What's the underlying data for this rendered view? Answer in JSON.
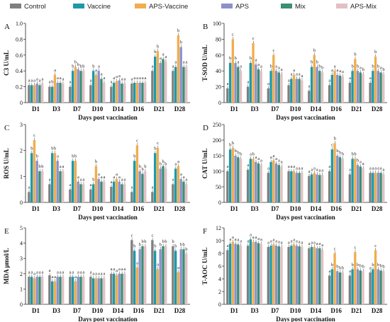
{
  "legend": [
    {
      "name": "Control",
      "color": "#7f7f7f"
    },
    {
      "name": "Vaccine",
      "color": "#1b9aa8"
    },
    {
      "name": "APS-Vaccine",
      "color": "#f0ad4e"
    },
    {
      "name": "APS",
      "color": "#8d90c9"
    },
    {
      "name": "Mix",
      "color": "#3a8f75"
    },
    {
      "name": "APS-Mix",
      "color": "#e3bfc3"
    }
  ],
  "chart_data": [
    {
      "panel": "A",
      "type": "bar",
      "ylabel": "C3  U/mL",
      "xlabel": "Days post vaccination",
      "categories": [
        "D1",
        "D3",
        "D7",
        "D10",
        "D14",
        "D16",
        "D21",
        "D28"
      ],
      "ylim": [
        0,
        1.0
      ],
      "yticks": [
        0,
        0.2,
        0.4,
        0.6,
        0.8,
        1.0
      ],
      "ytick_labels": [
        "0",
        "0.2",
        "0.4",
        "0.6",
        "0.8",
        "1.0"
      ],
      "series": [
        {
          "name": "Control",
          "values": [
            0.22,
            0.2,
            0.2,
            0.22,
            0.2,
            0.24,
            0.4,
            0.4
          ]
        },
        {
          "name": "Vaccine",
          "values": [
            0.22,
            0.2,
            0.4,
            0.4,
            0.25,
            0.25,
            0.58,
            0.45
          ]
        },
        {
          "name": "APS-Vaccine",
          "values": [
            0.22,
            0.35,
            0.45,
            0.35,
            0.27,
            0.25,
            0.65,
            0.85
          ]
        },
        {
          "name": "APS",
          "values": [
            0.24,
            0.25,
            0.42,
            0.4,
            0.28,
            0.25,
            0.5,
            0.7
          ]
        },
        {
          "name": "Mix",
          "values": [
            0.22,
            0.25,
            0.4,
            0.3,
            0.24,
            0.25,
            0.55,
            0.45
          ]
        },
        {
          "name": "APS-Mix",
          "values": [
            0.24,
            0.24,
            0.4,
            0.25,
            0.24,
            0.25,
            0.52,
            0.45
          ]
        }
      ],
      "letters": [
        [
          "a",
          "a",
          "a",
          "a",
          "a",
          "a"
        ],
        [
          "a",
          "b",
          "a",
          "a",
          "a",
          "a"
        ],
        [
          "a",
          "b",
          "b",
          "b",
          "b",
          "b"
        ],
        [
          "a",
          "b",
          "a",
          "a",
          "a",
          "a"
        ],
        [
          "a",
          "a",
          "a",
          "a",
          "a",
          "a"
        ],
        [
          "a",
          "a",
          "a",
          "a",
          "a",
          "a"
        ],
        [
          "a",
          "b",
          "b",
          "a",
          "a",
          "a"
        ],
        [
          "a",
          "a",
          "b",
          "b",
          "a",
          "a"
        ]
      ]
    },
    {
      "panel": "B",
      "type": "bar",
      "ylabel": "T-SOD  U/mL",
      "xlabel": "Days post vaccination",
      "categories": [
        "D1",
        "D3",
        "D7",
        "D10",
        "D14",
        "D16",
        "D21",
        "D28"
      ],
      "ylim": [
        0,
        100
      ],
      "yticks": [
        0,
        20,
        40,
        60,
        80,
        100
      ],
      "ytick_labels": [
        "0",
        "20",
        "40",
        "60",
        "80",
        "100"
      ],
      "series": [
        {
          "name": "Control",
          "values": [
            18,
            20,
            18,
            22,
            15,
            22,
            25,
            25
          ]
        },
        {
          "name": "Vaccine",
          "values": [
            50,
            50,
            40,
            30,
            45,
            35,
            40,
            40
          ]
        },
        {
          "name": "APS-Vaccine",
          "values": [
            80,
            75,
            60,
            35,
            60,
            40,
            55,
            58
          ]
        },
        {
          "name": "APS",
          "values": [
            50,
            48,
            40,
            30,
            45,
            35,
            40,
            40
          ]
        },
        {
          "name": "Mix",
          "values": [
            45,
            42,
            38,
            30,
            40,
            34,
            38,
            38
          ]
        },
        {
          "name": "APS-Mix",
          "values": [
            40,
            40,
            36,
            28,
            38,
            33,
            36,
            36
          ]
        }
      ],
      "letters": [
        [
          "a",
          "b",
          "c",
          "b",
          "a",
          "a"
        ],
        [
          "a",
          "b",
          "c",
          "a",
          "a",
          "a"
        ],
        [
          "a",
          "b",
          "c",
          "a",
          "a",
          "a"
        ],
        [
          "a",
          "a",
          "a",
          "a",
          "a",
          "a"
        ],
        [
          "a",
          "b",
          "b",
          "b",
          "b",
          "b"
        ],
        [
          "a",
          "a",
          "a",
          "a",
          "a",
          "a"
        ],
        [
          "a",
          "b",
          "b",
          "b",
          "a",
          "b"
        ],
        [
          "a",
          "b",
          "b",
          "b",
          "a",
          "b"
        ]
      ]
    },
    {
      "panel": "C",
      "type": "bar",
      "ylabel": "ROS  U/mL",
      "xlabel": "Days post vaccination",
      "categories": [
        "D1",
        "D3",
        "D7",
        "D10",
        "D14",
        "D16",
        "D21",
        "D28"
      ],
      "ylim": [
        0,
        3
      ],
      "yticks": [
        0,
        1,
        2,
        3
      ],
      "ytick_labels": [
        "0",
        "1",
        "2",
        "3"
      ],
      "series": [
        {
          "name": "Control",
          "values": [
            0.4,
            0.7,
            0.5,
            0.5,
            0.6,
            0.4,
            0.4,
            0.7
          ]
        },
        {
          "name": "Vaccine",
          "values": [
            1.9,
            1.9,
            1.6,
            0.7,
            0.8,
            1.6,
            1.9,
            1.3
          ]
        },
        {
          "name": "APS-Vaccine",
          "values": [
            2.4,
            1.9,
            1.6,
            1.4,
            0.9,
            2.2,
            2.1,
            1.4
          ]
        },
        {
          "name": "APS",
          "values": [
            1.6,
            1.6,
            0.8,
            0.9,
            0.8,
            1.2,
            1.3,
            0.9
          ]
        },
        {
          "name": "Mix",
          "values": [
            1.2,
            1.2,
            0.7,
            0.8,
            0.7,
            1.1,
            1.4,
            0.8
          ]
        },
        {
          "name": "APS-Mix",
          "values": [
            1.2,
            1.2,
            0.7,
            0.8,
            0.7,
            1.2,
            1.3,
            0.7
          ]
        }
      ],
      "letters": [
        [
          "a",
          "b",
          "c",
          "b",
          "b",
          "b"
        ],
        [
          "a",
          "b",
          "b",
          "a",
          "a",
          "a"
        ],
        [
          "a",
          "b",
          "b",
          "a",
          "a",
          "a"
        ],
        [
          "a",
          "b",
          "b",
          "a",
          "a",
          "a"
        ],
        [
          "a",
          "a",
          "a",
          "a",
          "a",
          "a"
        ],
        [
          "a",
          "b",
          "c",
          "b",
          "b",
          "b"
        ],
        [
          "a",
          "b",
          "c",
          "b",
          "b",
          "b"
        ],
        [
          "a",
          "a",
          "a",
          "a",
          "a",
          "a"
        ]
      ]
    },
    {
      "panel": "D",
      "type": "bar",
      "ylabel": "CAT  U/mL",
      "xlabel": "Days post vaccination",
      "categories": [
        "D1",
        "D3",
        "D7",
        "D10",
        "D14",
        "D16",
        "D21",
        "D28"
      ],
      "ylim": [
        0,
        250
      ],
      "yticks": [
        0,
        50,
        100,
        150,
        200,
        250
      ],
      "ytick_labels": [
        "0",
        "50",
        "100",
        "150",
        "200",
        "250"
      ],
      "series": [
        {
          "name": "Control",
          "values": [
            100,
            105,
            95,
            100,
            85,
            100,
            90,
            95
          ]
        },
        {
          "name": "Vaccine",
          "values": [
            170,
            140,
            130,
            100,
            90,
            170,
            140,
            95
          ]
        },
        {
          "name": "APS-Vaccine",
          "values": [
            175,
            140,
            135,
            100,
            95,
            190,
            140,
            95
          ]
        },
        {
          "name": "APS",
          "values": [
            150,
            130,
            125,
            95,
            90,
            150,
            120,
            95
          ]
        },
        {
          "name": "Mix",
          "values": [
            145,
            125,
            120,
            95,
            88,
            145,
            115,
            95
          ]
        },
        {
          "name": "APS-Mix",
          "values": [
            140,
            120,
            115,
            95,
            88,
            140,
            110,
            90
          ]
        }
      ],
      "letters": [
        [
          "a",
          "b",
          "b",
          "b",
          "b",
          "b"
        ],
        [
          "a",
          "a",
          "b",
          "a",
          "a",
          "a"
        ],
        [
          "a",
          "a",
          "a",
          "a",
          "a",
          "a"
        ],
        [
          "a",
          "a",
          "a",
          "a",
          "a",
          "a"
        ],
        [
          "a",
          "a",
          "a",
          "a",
          "a",
          "a"
        ],
        [
          "a",
          "c",
          "b",
          "b",
          "b",
          "b"
        ],
        [
          "a",
          "b",
          "b",
          "b",
          "a",
          "a"
        ],
        [
          "a",
          "a",
          "a",
          "a",
          "a",
          "a"
        ]
      ]
    },
    {
      "panel": "E",
      "type": "bar",
      "ylabel": "MDA  μmol/L",
      "xlabel": "Days post vaccination",
      "categories": [
        "D1",
        "D3",
        "D7",
        "D10",
        "D14",
        "D16",
        "D21",
        "D28"
      ],
      "ylim": [
        0,
        5
      ],
      "yticks": [
        0,
        1,
        2,
        3,
        4,
        5
      ],
      "ytick_labels": [
        "0",
        "1",
        "2",
        "3",
        "4",
        "5"
      ],
      "series": [
        {
          "name": "Control",
          "values": [
            1.8,
            1.9,
            1.8,
            1.8,
            2.0,
            4.2,
            4.2,
            3.8
          ]
        },
        {
          "name": "Vaccine",
          "values": [
            1.8,
            1.5,
            1.8,
            1.7,
            2.0,
            3.5,
            3.5,
            3.5
          ]
        },
        {
          "name": "APS-Vaccine",
          "values": [
            1.7,
            1.5,
            1.5,
            1.7,
            1.9,
            2.4,
            2.3,
            2.1
          ]
        },
        {
          "name": "APS",
          "values": [
            1.8,
            1.8,
            1.8,
            1.7,
            2.0,
            3.6,
            3.6,
            3.6
          ]
        },
        {
          "name": "Mix",
          "values": [
            1.8,
            1.8,
            1.8,
            1.7,
            2.0,
            3.8,
            3.8,
            3.6
          ]
        },
        {
          "name": "APS-Mix",
          "values": [
            1.8,
            1.8,
            1.8,
            1.7,
            2.0,
            3.8,
            3.8,
            3.3
          ]
        }
      ],
      "letters": [
        [
          "a",
          "a",
          "a",
          "a",
          "a",
          "a"
        ],
        [
          "a",
          "a",
          "a",
          "a",
          "a",
          "a"
        ],
        [
          "a",
          "a",
          "a",
          "a",
          "a",
          "a"
        ],
        [
          "a",
          "a",
          "a",
          "a",
          "a",
          "a"
        ],
        [
          "a",
          "a",
          "a",
          "a",
          "a",
          "a"
        ],
        [
          "c",
          "b",
          "a",
          "b",
          "b",
          "b"
        ],
        [
          "c",
          "b",
          "a",
          "b",
          "b",
          "b"
        ],
        [
          "b",
          "b",
          "a",
          "b",
          "b",
          "b"
        ]
      ]
    },
    {
      "panel": "F",
      "type": "bar",
      "ylabel": "T-AOC U/mL",
      "xlabel": "Days post vaccination",
      "categories": [
        "D1",
        "D3",
        "D7",
        "D10",
        "D14",
        "D16",
        "D21",
        "D28"
      ],
      "ylim": [
        0,
        12
      ],
      "yticks": [
        0,
        2,
        4,
        6,
        8,
        10,
        12
      ],
      "ytick_labels": [
        "0",
        "2",
        "4",
        "6",
        "8",
        "10",
        "12"
      ],
      "series": [
        {
          "name": "Control",
          "values": [
            8.5,
            9.2,
            9.0,
            9.0,
            8.8,
            4.5,
            4.5,
            5.0
          ]
        },
        {
          "name": "Vaccine",
          "values": [
            9.5,
            10.2,
            9.2,
            9.2,
            9.0,
            5.5,
            5.5,
            5.5
          ]
        },
        {
          "name": "APS-Vaccine",
          "values": [
            9.8,
            9.8,
            9.4,
            9.4,
            9.0,
            8.0,
            8.2,
            8.5
          ]
        },
        {
          "name": "APS",
          "values": [
            9.5,
            9.8,
            9.2,
            9.2,
            8.8,
            5.2,
            5.5,
            5.5
          ]
        },
        {
          "name": "Mix",
          "values": [
            9.4,
            9.6,
            9.1,
            9.1,
            8.8,
            5.0,
            5.3,
            5.3
          ]
        },
        {
          "name": "APS-Mix",
          "values": [
            9.2,
            9.5,
            9.0,
            9.0,
            8.6,
            5.0,
            5.2,
            5.2
          ]
        }
      ],
      "letters": [
        [
          "a",
          "a",
          "a",
          "a",
          "a",
          "a"
        ],
        [
          "a",
          "a",
          "a",
          "a",
          "a",
          "a"
        ],
        [
          "a",
          "a",
          "a",
          "a",
          "a",
          "a"
        ],
        [
          "a",
          "a",
          "a",
          "a",
          "a",
          "a"
        ],
        [
          "a",
          "a",
          "a",
          "a",
          "a",
          "a"
        ],
        [
          "a",
          "b",
          "c",
          "b",
          "b",
          "b"
        ],
        [
          "a",
          "b",
          "c",
          "b",
          "b",
          "b"
        ],
        [
          "a",
          "b",
          "c",
          "b",
          "b",
          "b"
        ]
      ]
    }
  ]
}
